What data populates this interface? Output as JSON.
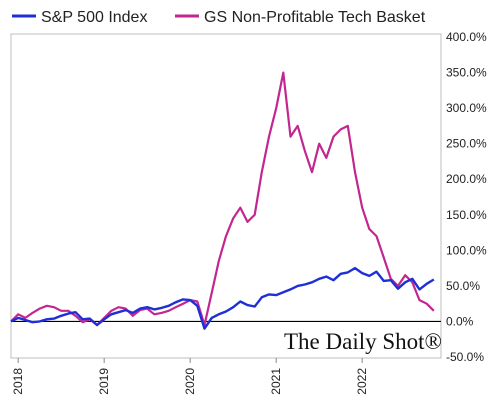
{
  "chart_data": {
    "type": "line",
    "title": "",
    "xlabel": "",
    "ylabel": "",
    "x_tick_labels": [
      "2018",
      "2019",
      "2020",
      "2021",
      "2022"
    ],
    "y_tick_labels": [
      "400.0%",
      "350.0%",
      "300.0%",
      "250.0%",
      "200.0%",
      "150.0%",
      "100.0%",
      "50.0%",
      "0.0%",
      "-50.0%"
    ],
    "ylim": [
      -50,
      400
    ],
    "xlim": [
      "2017-12",
      "2022-12"
    ],
    "y_unit": "%",
    "grid": false,
    "zero_line": true,
    "legend_position": "top",
    "watermark": "The Daily Shot®",
    "series": [
      {
        "name": "S&P 500 Index",
        "color": "#1f2fd8",
        "x": [
          "2017-12",
          "2018-01",
          "2018-02",
          "2018-03",
          "2018-04",
          "2018-05",
          "2018-06",
          "2018-07",
          "2018-08",
          "2018-09",
          "2018-10",
          "2018-11",
          "2018-12",
          "2019-01",
          "2019-02",
          "2019-03",
          "2019-04",
          "2019-05",
          "2019-06",
          "2019-07",
          "2019-08",
          "2019-09",
          "2019-10",
          "2019-11",
          "2019-12",
          "2020-01",
          "2020-02",
          "2020-03",
          "2020-04",
          "2020-05",
          "2020-06",
          "2020-07",
          "2020-08",
          "2020-09",
          "2020-10",
          "2020-11",
          "2020-12",
          "2021-01",
          "2021-02",
          "2021-03",
          "2021-04",
          "2021-05",
          "2021-06",
          "2021-07",
          "2021-08",
          "2021-09",
          "2021-10",
          "2021-11",
          "2021-12",
          "2022-01",
          "2022-02",
          "2022-03",
          "2022-04",
          "2022-05",
          "2022-06",
          "2022-07",
          "2022-08",
          "2022-09",
          "2022-10",
          "2022-11"
        ],
        "values": [
          0,
          5,
          2,
          -1,
          0,
          3,
          4,
          8,
          11,
          13,
          3,
          4,
          -5,
          3,
          10,
          13,
          16,
          12,
          18,
          20,
          17,
          19,
          22,
          27,
          31,
          30,
          22,
          -10,
          5,
          10,
          14,
          20,
          28,
          23,
          21,
          34,
          38,
          37,
          41,
          45,
          50,
          52,
          55,
          60,
          63,
          58,
          67,
          69,
          75,
          68,
          64,
          70,
          57,
          58,
          46,
          55,
          60,
          45,
          53,
          59
        ]
      },
      {
        "name": "GS Non-Profitable Tech Basket",
        "color": "#c2278f",
        "x": [
          "2017-12",
          "2018-01",
          "2018-02",
          "2018-03",
          "2018-04",
          "2018-05",
          "2018-06",
          "2018-07",
          "2018-08",
          "2018-09",
          "2018-10",
          "2018-11",
          "2018-12",
          "2019-01",
          "2019-02",
          "2019-03",
          "2019-04",
          "2019-05",
          "2019-06",
          "2019-07",
          "2019-08",
          "2019-09",
          "2019-10",
          "2019-11",
          "2019-12",
          "2020-01",
          "2020-02",
          "2020-03",
          "2020-04",
          "2020-05",
          "2020-06",
          "2020-07",
          "2020-08",
          "2020-09",
          "2020-10",
          "2020-11",
          "2020-12",
          "2021-01",
          "2021-02",
          "2021-03",
          "2021-04",
          "2021-05",
          "2021-06",
          "2021-07",
          "2021-08",
          "2021-09",
          "2021-10",
          "2021-11",
          "2021-12",
          "2022-01",
          "2022-02",
          "2022-03",
          "2022-04",
          "2022-05",
          "2022-06",
          "2022-07",
          "2022-08",
          "2022-09",
          "2022-10",
          "2022-11"
        ],
        "values": [
          0,
          10,
          5,
          12,
          18,
          22,
          20,
          15,
          15,
          8,
          -1,
          3,
          -5,
          5,
          15,
          20,
          18,
          8,
          16,
          18,
          10,
          12,
          15,
          20,
          25,
          30,
          28,
          -5,
          40,
          85,
          120,
          145,
          160,
          140,
          150,
          210,
          260,
          300,
          350,
          260,
          275,
          240,
          210,
          250,
          230,
          260,
          270,
          275,
          210,
          160,
          130,
          120,
          90,
          60,
          50,
          65,
          55,
          30,
          25,
          15
        ]
      }
    ]
  }
}
